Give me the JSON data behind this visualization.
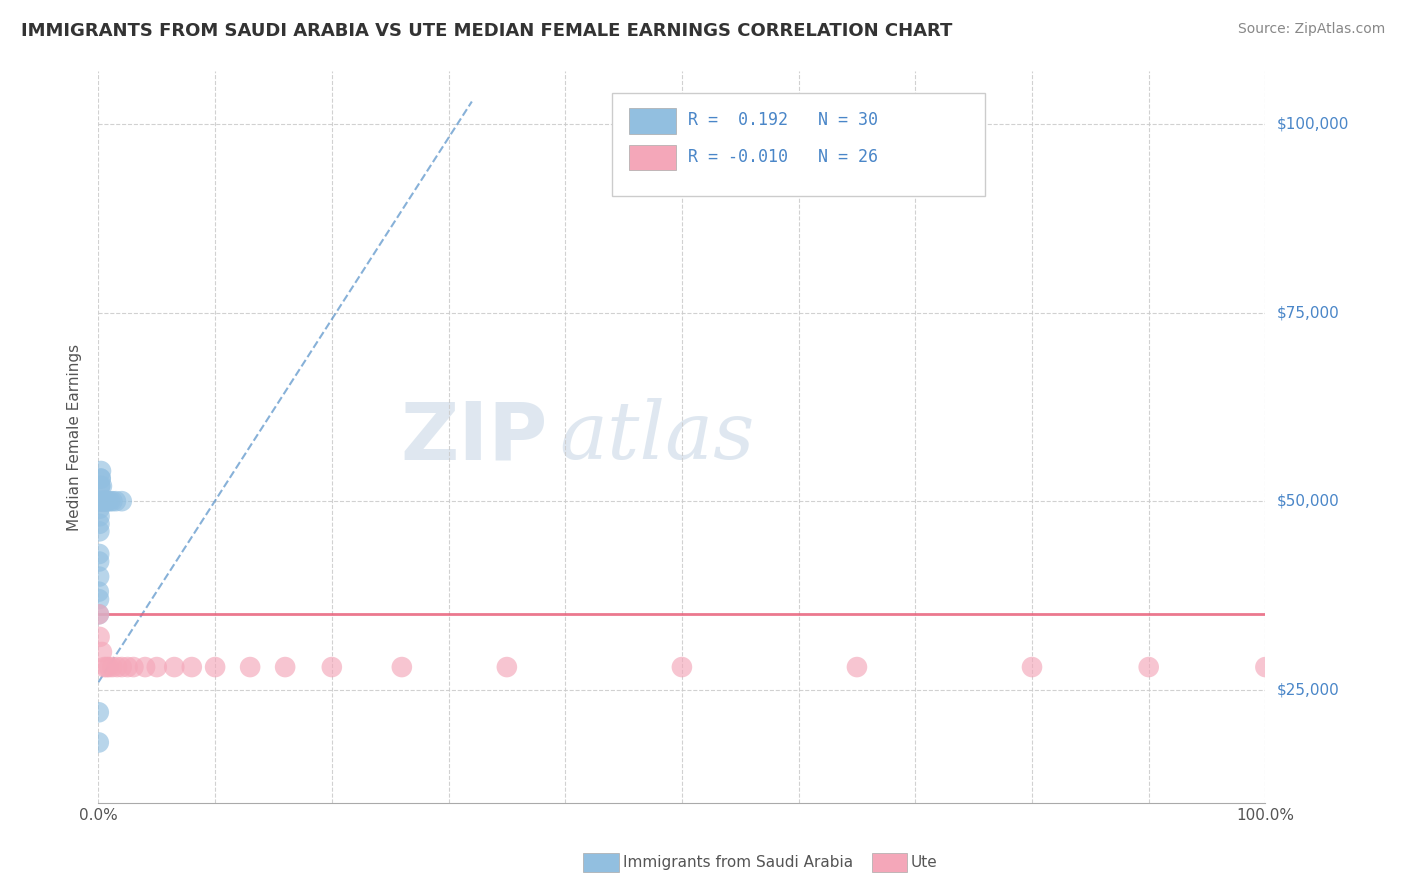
{
  "title": "IMMIGRANTS FROM SAUDI ARABIA VS UTE MEDIAN FEMALE EARNINGS CORRELATION CHART",
  "source": "Source: ZipAtlas.com",
  "ylabel": "Median Female Earnings",
  "xlim": [
    0.0,
    1.0
  ],
  "ylim": [
    10000,
    107000
  ],
  "yticks": [
    25000,
    50000,
    75000,
    100000
  ],
  "ytick_labels": [
    "$25,000",
    "$50,000",
    "$75,000",
    "$100,000"
  ],
  "xticks": [
    0.0,
    0.1,
    0.2,
    0.3,
    0.4,
    0.5,
    0.6,
    0.7,
    0.8,
    0.9,
    1.0
  ],
  "xtick_labels": [
    "0.0%",
    "",
    "",
    "",
    "",
    "",
    "",
    "",
    "",
    "",
    "100.0%"
  ],
  "blue_r": "0.192",
  "blue_n": "30",
  "pink_r": "-0.010",
  "pink_n": "26",
  "blue_color": "#92bfe0",
  "pink_color": "#f4a7b9",
  "trend_blue_color": "#5590c8",
  "trend_pink_color": "#e8607a",
  "background_color": "#ffffff",
  "grid_color": "#cccccc",
  "blue_x": [
    0.0003,
    0.0003,
    0.0003,
    0.0004,
    0.0005,
    0.0006,
    0.0006,
    0.0007,
    0.0008,
    0.0009,
    0.001,
    0.001,
    0.0012,
    0.0013,
    0.0014,
    0.0015,
    0.0016,
    0.0018,
    0.002,
    0.0022,
    0.003,
    0.004,
    0.005,
    0.006,
    0.007,
    0.008,
    0.01,
    0.012,
    0.015,
    0.02
  ],
  "blue_y": [
    18000,
    22000,
    38000,
    35000,
    37000,
    40000,
    42000,
    43000,
    46000,
    47000,
    48000,
    49000,
    50000,
    50000,
    52000,
    52000,
    50000,
    53000,
    53000,
    54000,
    52000,
    50000,
    50000,
    50000,
    50000,
    50000,
    50000,
    50000,
    50000,
    50000
  ],
  "pink_x": [
    0.0003,
    0.001,
    0.003,
    0.005,
    0.007,
    0.009,
    0.012,
    0.016,
    0.02,
    0.025,
    0.03,
    0.04,
    0.05,
    0.065,
    0.08,
    0.1,
    0.13,
    0.16,
    0.2,
    0.26,
    0.35,
    0.5,
    0.65,
    0.8,
    0.9,
    1.0
  ],
  "pink_y": [
    35000,
    32000,
    30000,
    28000,
    28000,
    28000,
    28000,
    28000,
    28000,
    28000,
    28000,
    28000,
    28000,
    28000,
    28000,
    28000,
    28000,
    28000,
    28000,
    28000,
    28000,
    28000,
    28000,
    28000,
    28000,
    28000
  ],
  "watermark_zip": "ZIP",
  "watermark_atlas": "atlas"
}
